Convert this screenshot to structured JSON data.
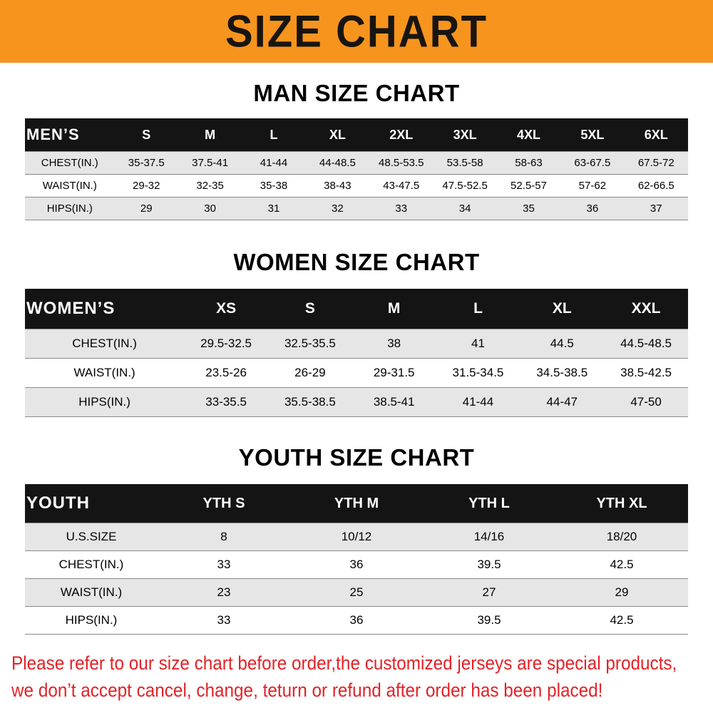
{
  "banner": {
    "title": "SIZE CHART"
  },
  "tables": [
    {
      "heading": "MAN SIZE CHART",
      "header": [
        "MEN’S",
        "S",
        "M",
        "L",
        "XL",
        "2XL",
        "3XL",
        "4XL",
        "5XL",
        "6XL"
      ],
      "rows": [
        [
          "CHEST(IN.)",
          "35-37.5",
          "37.5-41",
          "41-44",
          "44-48.5",
          "48.5-53.5",
          "53.5-58",
          "58-63",
          "63-67.5",
          "67.5-72"
        ],
        [
          "WAIST(IN.)",
          "29-32",
          "32-35",
          "35-38",
          "38-43",
          "43-47.5",
          "47.5-52.5",
          "52.5-57",
          "57-62",
          "62-66.5"
        ],
        [
          "HIPS(IN.)",
          "29",
          "30",
          "31",
          "32",
          "33",
          "34",
          "35",
          "36",
          "37"
        ]
      ]
    },
    {
      "heading": "WOMEN SIZE CHART",
      "header": [
        "WOMEN’S",
        "XS",
        "S",
        "M",
        "L",
        "XL",
        "XXL"
      ],
      "rows": [
        [
          "CHEST(IN.)",
          "29.5-32.5",
          "32.5-35.5",
          "38",
          "41",
          "44.5",
          "44.5-48.5"
        ],
        [
          "WAIST(IN.)",
          "23.5-26",
          "26-29",
          "29-31.5",
          "31.5-34.5",
          "34.5-38.5",
          "38.5-42.5"
        ],
        [
          "HIPS(IN.)",
          "33-35.5",
          "35.5-38.5",
          "38.5-41",
          "41-44",
          "44-47",
          "47-50"
        ]
      ]
    },
    {
      "heading": "YOUTH SIZE CHART",
      "header": [
        "YOUTH",
        "YTH S",
        "YTH M",
        "YTH L",
        "YTH XL"
      ],
      "rows": [
        [
          "U.S.SIZE",
          "8",
          "10/12",
          "14/16",
          "18/20"
        ],
        [
          "CHEST(IN.)",
          "33",
          "36",
          "39.5",
          "42.5"
        ],
        [
          "WAIST(IN.)",
          "23",
          "25",
          "27",
          "29"
        ],
        [
          "HIPS(IN.)",
          "33",
          "36",
          "39.5",
          "42.5"
        ]
      ]
    }
  ],
  "footer": {
    "line1": "Please refer to our size chart before order,the customized jerseys are special products,",
    "line2": "we don’t accept cancel, change, teturn or refund after order has been placed!"
  },
  "colors": {
    "banner_bg": "#f7941e",
    "table_header_bg": "#141414",
    "row_shade": "#e6e6e6",
    "footer_text": "#e32227"
  }
}
